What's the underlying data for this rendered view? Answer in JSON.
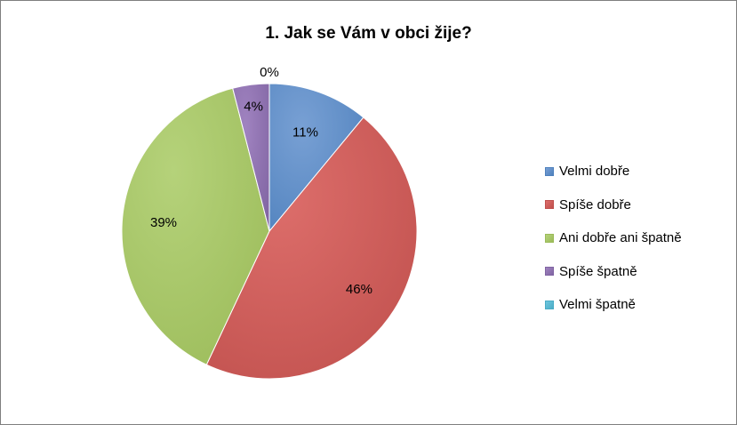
{
  "chart_data": {
    "type": "pie",
    "title": "1. Jak se Vám v obci žije?",
    "categories": [
      "Velmi dobře",
      "Spíše dobře",
      "Ani dobře ani špatně",
      "Spíše špatně",
      "Velmi špatně"
    ],
    "values": [
      11,
      46,
      39,
      4,
      0
    ],
    "data_labels": [
      "11%",
      "46%",
      "39%",
      "4%",
      "0%"
    ],
    "colors": [
      "#4f81bd",
      "#c0504d",
      "#9bbb59",
      "#8064a2",
      "#4bacc6"
    ],
    "gradient_light": [
      "#78a0d4",
      "#dd6e6b",
      "#b5d27a",
      "#a083c0",
      "#6fc6de"
    ],
    "legend_position": "right",
    "start_angle": "top, clockwise"
  }
}
